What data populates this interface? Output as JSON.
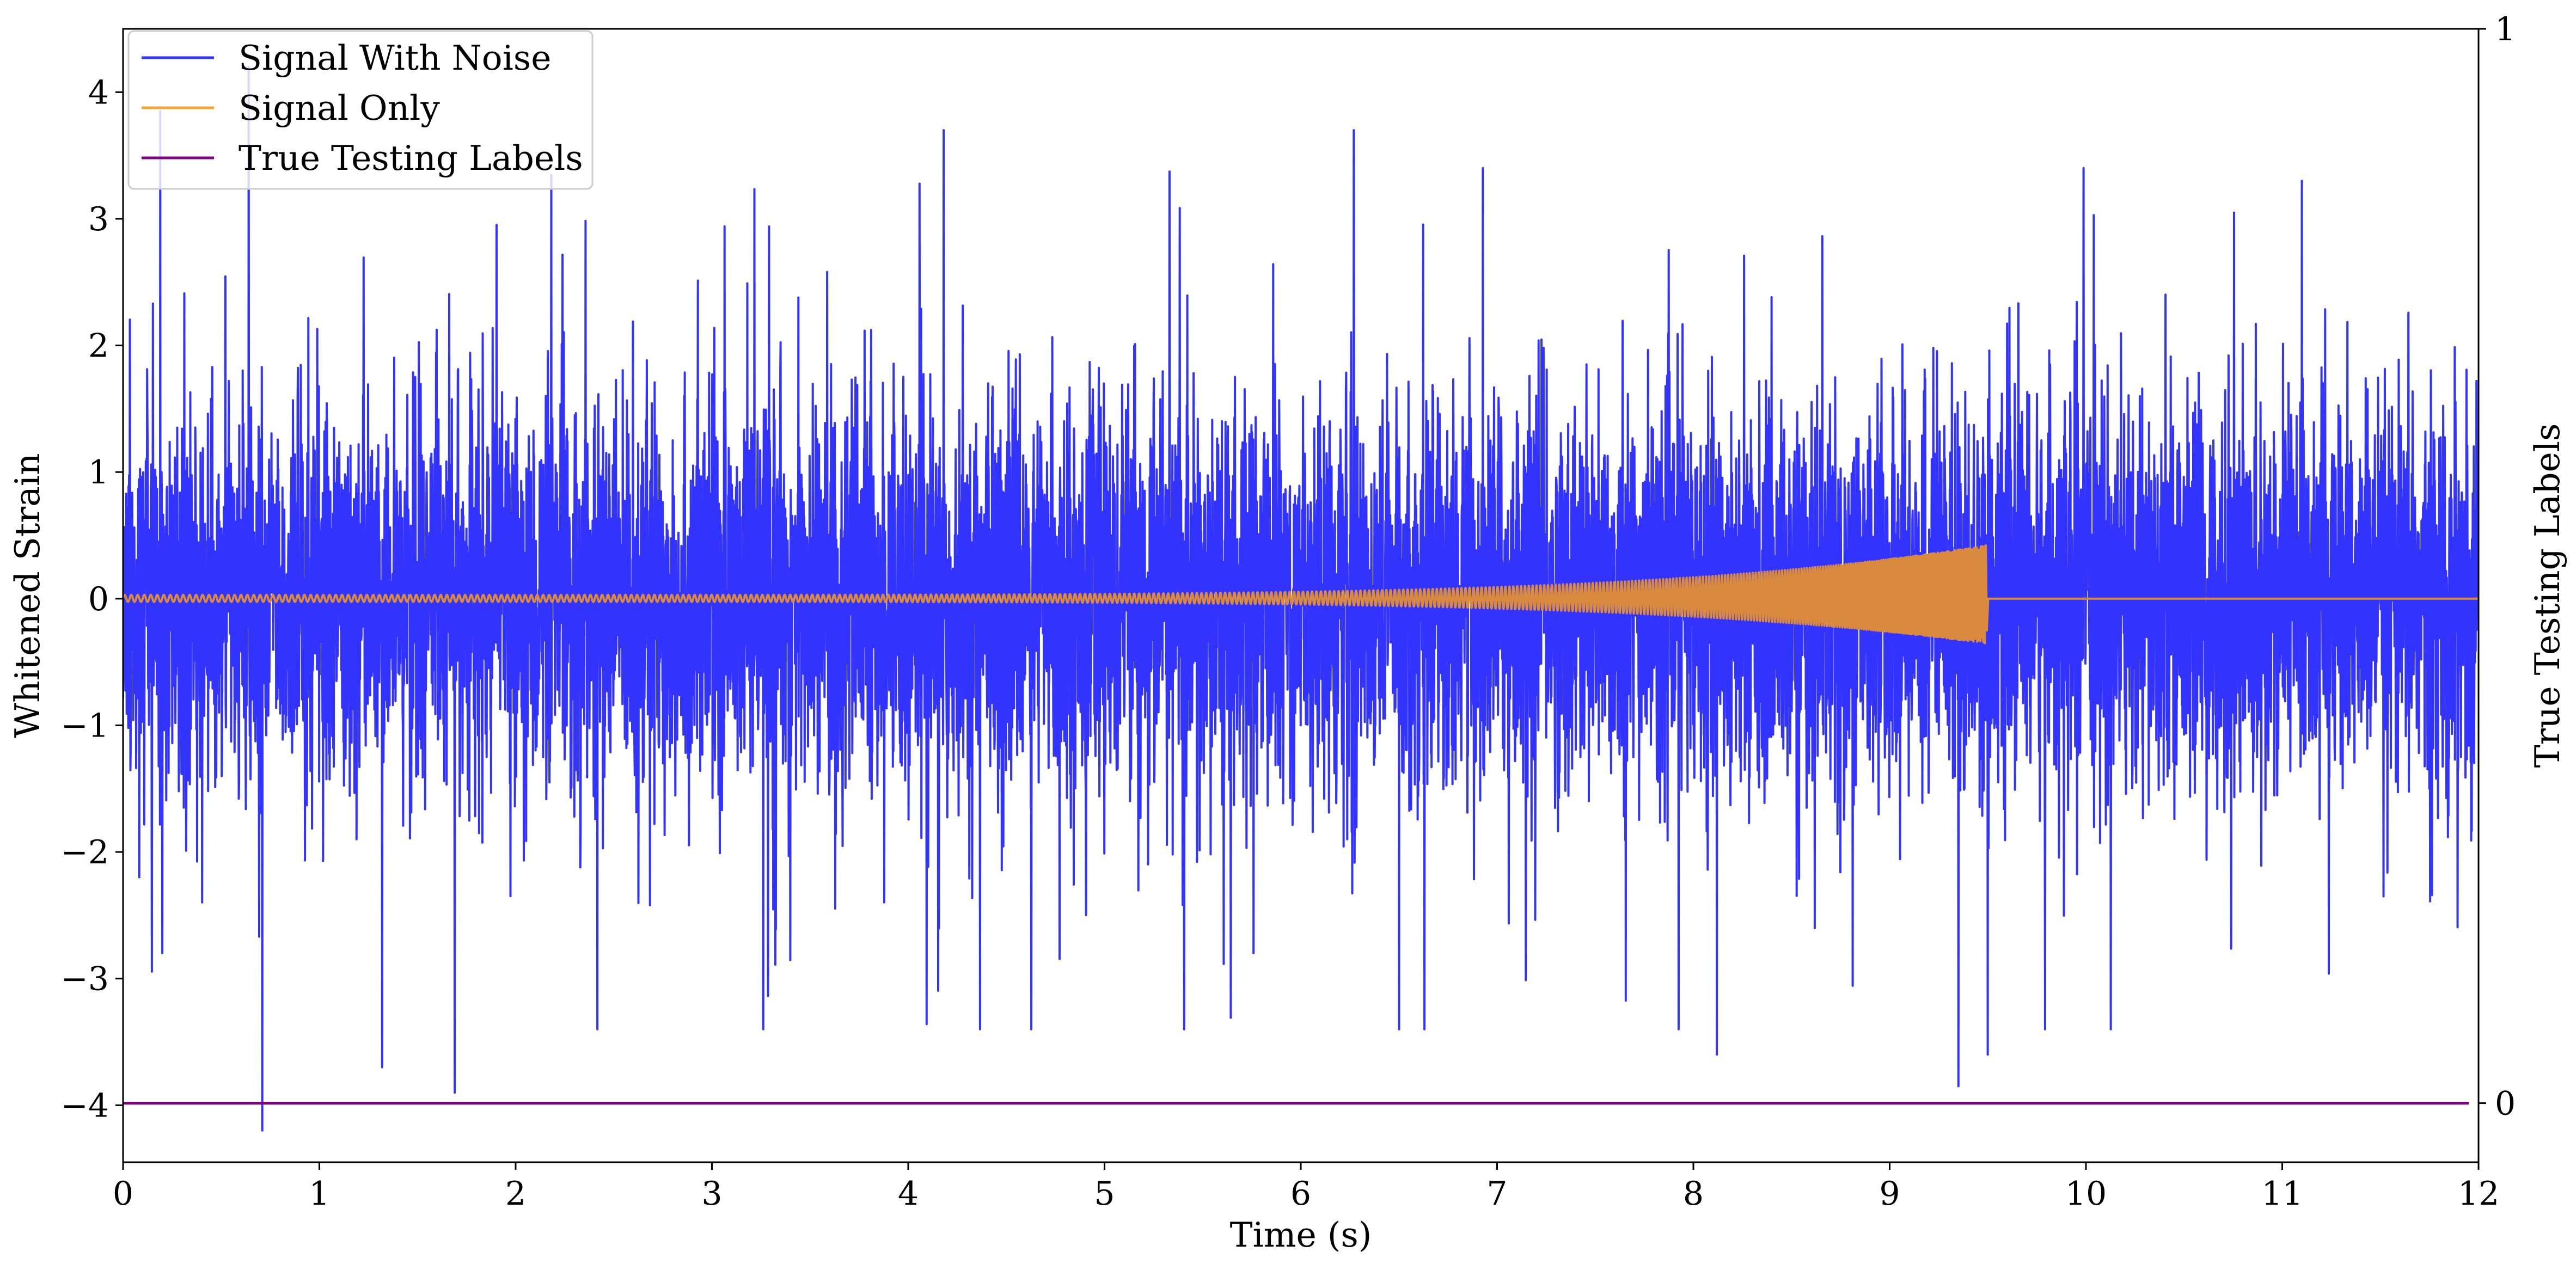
{
  "chart_data": {
    "type": "line",
    "xlabel": "Time (s)",
    "ylabel": "Whitened Strain",
    "y2label": "True Testing Labels",
    "xlim": [
      0,
      12
    ],
    "ylim": [
      -4.45,
      4.5
    ],
    "y2lim": [
      -0.055,
      1.0
    ],
    "xticks": [
      0,
      1,
      2,
      3,
      4,
      5,
      6,
      7,
      8,
      9,
      10,
      11,
      12
    ],
    "yticks": [
      -4,
      -3,
      -2,
      -1,
      0,
      1,
      2,
      3,
      4
    ],
    "y2ticks": [
      0,
      1
    ],
    "grid": false,
    "legend": {
      "position": "top-left"
    },
    "noise_std": 0.72,
    "noise_peaks": [
      {
        "x": 0.19,
        "y": 3.85
      },
      {
        "x": 0.64,
        "y": 4.2
      },
      {
        "x": 0.71,
        "y": -4.2
      },
      {
        "x": 1.32,
        "y": -3.7
      },
      {
        "x": 1.69,
        "y": -3.9
      },
      {
        "x": 4.18,
        "y": 3.7
      },
      {
        "x": 6.27,
        "y": 3.7
      },
      {
        "x": 8.12,
        "y": -3.6
      },
      {
        "x": 9.35,
        "y": -3.85
      },
      {
        "x": 9.5,
        "y": -3.6
      },
      {
        "x": 11.1,
        "y": 3.3
      }
    ],
    "series": [
      {
        "name": "Signal With Noise",
        "color": "#3333ff"
      },
      {
        "name": "Signal Only",
        "color": "#f4a83a",
        "blended_color": "#da8a3e",
        "x_start": 0.0,
        "x_merge": 9.49,
        "amplitude_start": 0.03,
        "amplitude_peak": 0.42,
        "trough_peak": -0.25,
        "post_merge_value": 0.0
      },
      {
        "name": "True Testing Labels",
        "color": "#800080",
        "axis": "right",
        "x": [
          0,
          11.95
        ],
        "values": [
          0,
          0
        ]
      }
    ]
  }
}
